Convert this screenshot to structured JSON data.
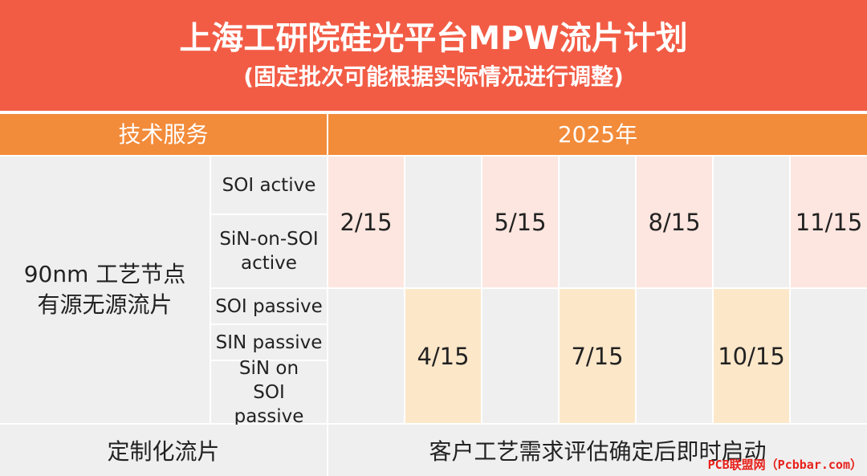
{
  "header": {
    "title": "上海工研院硅光平台MPW流片计划",
    "subtitle": "(固定批次可能根据实际情况进行调整)"
  },
  "table": {
    "col_header_service": "技术服务",
    "col_header_year": "2025年",
    "process_label_line1": "90nm 工艺节点",
    "process_label_line2": "有源无源流片",
    "sub_rows": {
      "soi_active": "SOI active",
      "sin_on_soi_active": "SiN-on-SOI active",
      "soi_passive": "SOI passive",
      "sin_passive": "SIN passive",
      "sin_on_soi_passive": "SiN on SOI passive"
    },
    "active_dates": [
      "2/15",
      "5/15",
      "8/15",
      "11/15"
    ],
    "passive_dates": [
      "4/15",
      "7/15",
      "10/15"
    ],
    "custom_label": "定制化流片",
    "custom_text": "客户工艺需求评估确定后即时启动"
  },
  "colors": {
    "header_bg": "#f25c45",
    "band_bg": "#f28b3a",
    "active_cell": "#fde6df",
    "passive_cell": "#fde7c9",
    "grey_cell": "#efefef"
  },
  "watermark": "PCB联盟网（Pcbbar.com）"
}
